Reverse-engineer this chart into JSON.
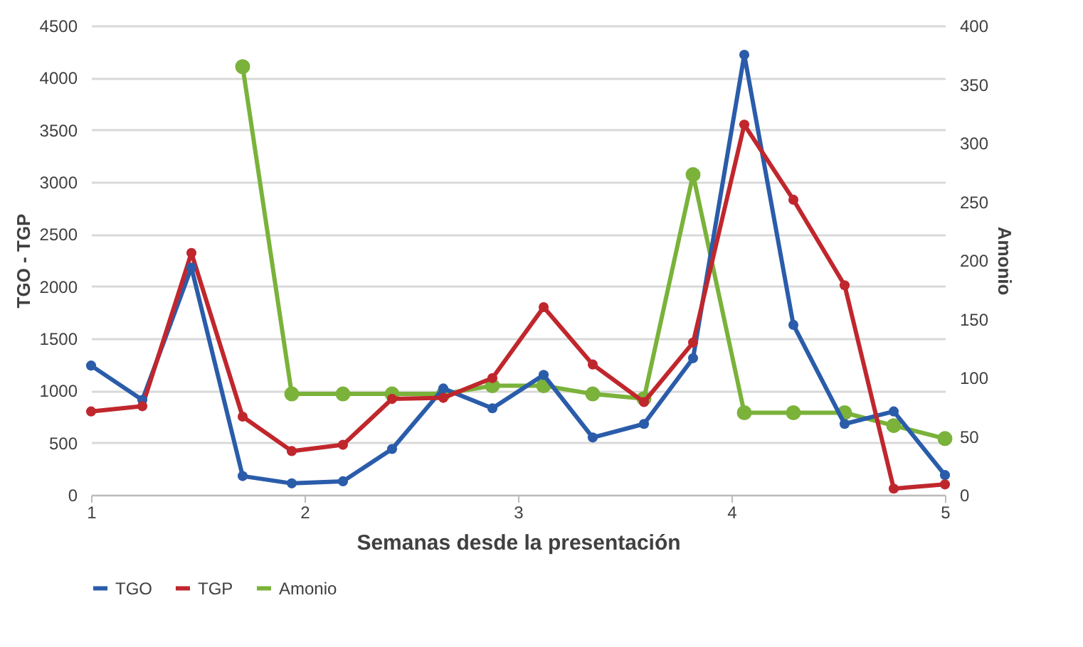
{
  "chart_data": {
    "type": "line",
    "xlabel": "Semanas desde la presentación",
    "ylabel": "TGO - TGP",
    "y2label": "Amonio",
    "x": [
      1,
      1.24,
      1.47,
      1.71,
      1.94,
      2.18,
      2.41,
      2.65,
      2.88,
      3.12,
      3.35,
      3.59,
      3.82,
      4.06,
      4.29,
      4.53,
      4.76,
      5
    ],
    "series": [
      {
        "name": "TGO",
        "color": "#2a5caa",
        "values": [
          1240,
          910,
          2180,
          180,
          110,
          130,
          440,
          1020,
          830,
          1150,
          550,
          680,
          1310,
          4220,
          1630,
          680,
          800,
          190
        ]
      },
      {
        "name": "TGP",
        "color": "#c0272d",
        "values": [
          800,
          850,
          2320,
          750,
          420,
          480,
          920,
          930,
          1120,
          1800,
          1250,
          890,
          1460,
          3550,
          2830,
          2010,
          60,
          100
        ]
      },
      {
        "name": "Amonio",
        "color": "#7ab23a",
        "axis": "y2",
        "values": [
          null,
          null,
          null,
          365,
          86,
          86,
          86,
          86,
          93,
          93,
          86,
          82,
          273,
          70,
          70,
          70,
          59,
          48
        ]
      }
    ],
    "xlim": [
      1,
      5
    ],
    "xticks": [
      1,
      2,
      3,
      4,
      5
    ],
    "ylim": [
      0,
      4500
    ],
    "yticks": [
      0,
      500,
      1000,
      1500,
      2000,
      2500,
      3000,
      3500,
      4000,
      4500
    ],
    "y2lim": [
      0,
      400
    ],
    "y2ticks": [
      0,
      50,
      100,
      150,
      200,
      250,
      300,
      350,
      400
    ],
    "grid": "y",
    "legend": "bottom",
    "marker": "circle",
    "line_style": "solid"
  }
}
